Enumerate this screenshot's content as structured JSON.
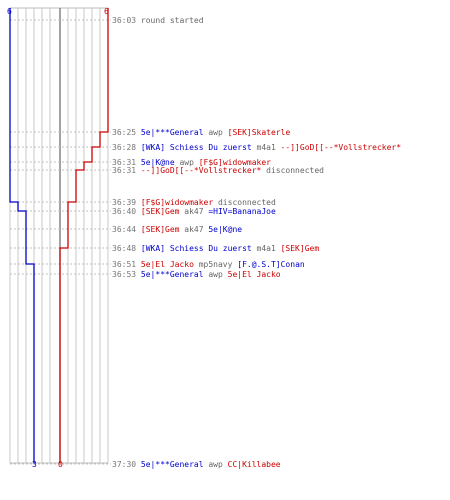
{
  "colors": {
    "blue": "#0000cc",
    "red": "#cc0000",
    "gray": "#666666",
    "time": "#777777"
  },
  "scores": {
    "blue_start": "6",
    "red_start": "6",
    "blue_end": "3",
    "red_end": "0"
  },
  "events": [
    {
      "time": "36:03",
      "parts": [
        {
          "text": "round started",
          "color": "g"
        }
      ]
    },
    {
      "time": "36:25",
      "parts": [
        {
          "text": "5e|***General",
          "color": "b"
        },
        {
          "text": " awp ",
          "color": "g"
        },
        {
          "text": "[SEK]Skaterle",
          "color": "r"
        }
      ]
    },
    {
      "time": "36:28",
      "parts": [
        {
          "text": "[WKA] Schiess Du zuerst",
          "color": "b"
        },
        {
          "text": " m4a1 ",
          "color": "g"
        },
        {
          "text": "--]]GoD[[--*Vollstrecker*",
          "color": "r"
        }
      ]
    },
    {
      "time": "36:31",
      "parts": [
        {
          "text": "5e|K@ne",
          "color": "b"
        },
        {
          "text": " awp ",
          "color": "g"
        },
        {
          "text": "[F$G]widowmaker",
          "color": "r"
        }
      ]
    },
    {
      "time": "36:31",
      "parts": [
        {
          "text": "--]]GoD[[--*Vollstrecker*",
          "color": "r"
        },
        {
          "text": " disconnected",
          "color": "g"
        }
      ]
    },
    {
      "time": "36:39",
      "parts": [
        {
          "text": "[F$G]widowmaker",
          "color": "r"
        },
        {
          "text": " disconnected",
          "color": "g"
        }
      ]
    },
    {
      "time": "36:40",
      "parts": [
        {
          "text": "[SEK]Gem",
          "color": "r"
        },
        {
          "text": " ak47 ",
          "color": "g"
        },
        {
          "text": "=HIV=BananaJoe",
          "color": "b"
        }
      ]
    },
    {
      "time": "36:44",
      "parts": [
        {
          "text": "[SEK]Gem",
          "color": "r"
        },
        {
          "text": " ak47 ",
          "color": "g"
        },
        {
          "text": "5e|K@ne",
          "color": "b"
        }
      ]
    },
    {
      "time": "36:48",
      "parts": [
        {
          "text": "[WKA] Schiess Du zuerst",
          "color": "b"
        },
        {
          "text": " m4a1 ",
          "color": "g"
        },
        {
          "text": "[SEK]Gem",
          "color": "r"
        }
      ]
    },
    {
      "time": "36:51",
      "parts": [
        {
          "text": "5e|El Jacko",
          "color": "r"
        },
        {
          "text": " mp5navy ",
          "color": "g"
        },
        {
          "text": "[F.@.S.T]Conan",
          "color": "b"
        }
      ]
    },
    {
      "time": "36:53",
      "parts": [
        {
          "text": "5e|***General",
          "color": "b"
        },
        {
          "text": " awp ",
          "color": "g"
        },
        {
          "text": "5e|El Jacko",
          "color": "r"
        }
      ]
    },
    {
      "time": "37:30",
      "parts": [
        {
          "text": "5e|***General",
          "color": "b"
        },
        {
          "text": " awp ",
          "color": "g"
        },
        {
          "text": "CC|Killabee",
          "color": "r"
        }
      ]
    }
  ]
}
